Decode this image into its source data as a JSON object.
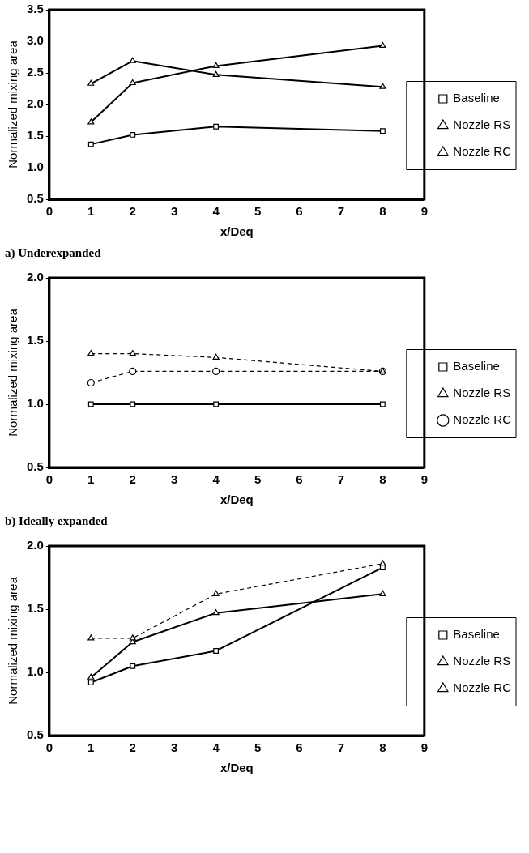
{
  "chart_data": [
    {
      "type": "line",
      "xlabel": "x/Deq",
      "ylabel": "Normalized mixing area",
      "annotations": [
        "a) Underexpanded"
      ],
      "x": [
        1,
        2,
        4,
        8
      ],
      "xlim": [
        0,
        9
      ],
      "xticks": [
        0,
        1,
        2,
        3,
        4,
        5,
        6,
        7,
        8,
        9
      ],
      "ylim": [
        0.5,
        3.5
      ],
      "yticks": [
        0.5,
        {
          "value": 1,
          "label": "1.0"
        },
        1.5,
        {
          "value": 2,
          "label": "2.0"
        },
        2.5,
        {
          "value": 3,
          "label": "3.0"
        },
        3.5
      ],
      "grid": false,
      "legend": "right",
      "series": [
        {
          "name": "Baseline",
          "color": "#000000",
          "marker": "square",
          "line_style": "solid",
          "values": [
            1.37,
            1.52,
            1.65,
            1.58
          ]
        },
        {
          "name": "Nozzle RS",
          "color": "#000000",
          "marker": "triangle",
          "line_style": "solid",
          "values": [
            2.33,
            2.69,
            2.47,
            2.28
          ]
        },
        {
          "name": "Nozzle RC",
          "color": "#000000",
          "marker": "triangle",
          "line_style": "solid",
          "values": [
            1.72,
            2.34,
            2.61,
            2.93
          ]
        }
      ]
    },
    {
      "type": "line",
      "xlabel": "x/Deq",
      "ylabel": "Normalized mixing area",
      "annotations": [
        "b) Ideally expanded"
      ],
      "x": [
        1,
        2,
        4,
        8
      ],
      "xlim": [
        0,
        9
      ],
      "xticks": [
        0,
        1,
        2,
        3,
        4,
        5,
        6,
        7,
        8,
        9
      ],
      "ylim": [
        0.5,
        2.0
      ],
      "yticks": [
        0.5,
        {
          "value": 1,
          "label": "1.0"
        },
        1.5,
        {
          "value": 2,
          "label": "2.0"
        }
      ],
      "grid": false,
      "legend": "right",
      "series": [
        {
          "name": "Baseline",
          "color": "#000000",
          "marker": "square",
          "line_style": "solid",
          "values": [
            1.0,
            1.0,
            1.0,
            1.0
          ]
        },
        {
          "name": "Nozzle RS",
          "color": "#000000",
          "marker": "triangle",
          "line_style": "dashed",
          "values": [
            1.4,
            1.4,
            1.37,
            1.26
          ]
        },
        {
          "name": "Nozzle RC",
          "color": "#000000",
          "marker": "circle",
          "line_style": "dashed",
          "values": [
            1.17,
            1.26,
            1.26,
            1.26
          ]
        }
      ]
    },
    {
      "type": "line",
      "xlabel": "x/Deq",
      "ylabel": "Normalized mixing area",
      "x": [
        1,
        2,
        4,
        8
      ],
      "xlim": [
        0,
        9
      ],
      "xticks": [
        0,
        1,
        2,
        3,
        4,
        5,
        6,
        7,
        8,
        9
      ],
      "ylim": [
        0.5,
        2.0
      ],
      "yticks": [
        0.5,
        {
          "value": 1,
          "label": "1.0"
        },
        1.5,
        {
          "value": 2,
          "label": "2.0"
        }
      ],
      "grid": false,
      "legend": "right",
      "series": [
        {
          "name": "Baseline",
          "color": "#000000",
          "marker": "square",
          "line_style": "solid",
          "values": [
            0.92,
            1.05,
            1.17,
            1.83
          ]
        },
        {
          "name": "Nozzle RS",
          "color": "#000000",
          "marker": "triangle",
          "line_style": "dashed",
          "values": [
            1.27,
            1.27,
            1.62,
            1.86
          ]
        },
        {
          "name": "Nozzle RC",
          "color": "#000000",
          "marker": "triangle",
          "line_style": "solid",
          "values": [
            0.96,
            1.24,
            1.47,
            1.62
          ]
        }
      ]
    }
  ]
}
